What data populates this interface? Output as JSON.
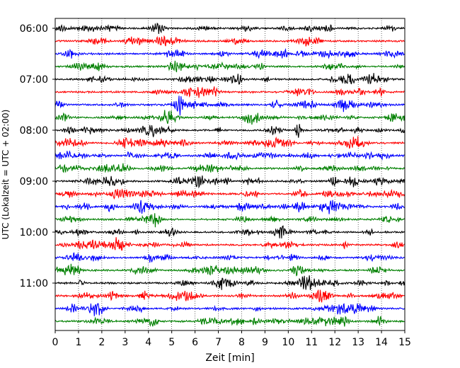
{
  "chart_data": {
    "type": "line",
    "title": "",
    "xlabel": "Zeit  [min]",
    "ylabel": "UTC (Lokalzeit = UTC + 02:00)",
    "xlim": [
      0,
      15
    ],
    "x_ticks": [
      "0",
      "1",
      "2",
      "3",
      "4",
      "5",
      "6",
      "7",
      "8",
      "9",
      "10",
      "11",
      "12",
      "13",
      "14",
      "15"
    ],
    "y_tick_labels": [
      "06:00",
      "07:00",
      "08:00",
      "09:00",
      "10:00",
      "11:00"
    ],
    "y_tick_trace_index": [
      0,
      4,
      8,
      12,
      16,
      20
    ],
    "trace_start_times": [
      "06:00",
      "06:15",
      "06:30",
      "06:45",
      "07:00",
      "07:15",
      "07:30",
      "07:45",
      "08:00",
      "08:15",
      "08:30",
      "08:45",
      "09:00",
      "09:15",
      "09:30",
      "09:45",
      "10:00",
      "10:15",
      "10:30",
      "10:45",
      "11:00",
      "11:15",
      "11:30",
      "11:45"
    ],
    "trace_colors": [
      "#000000",
      "#ff0000",
      "#0000ff",
      "#008000"
    ],
    "grid": "vertical-dotted",
    "legend": "none"
  }
}
